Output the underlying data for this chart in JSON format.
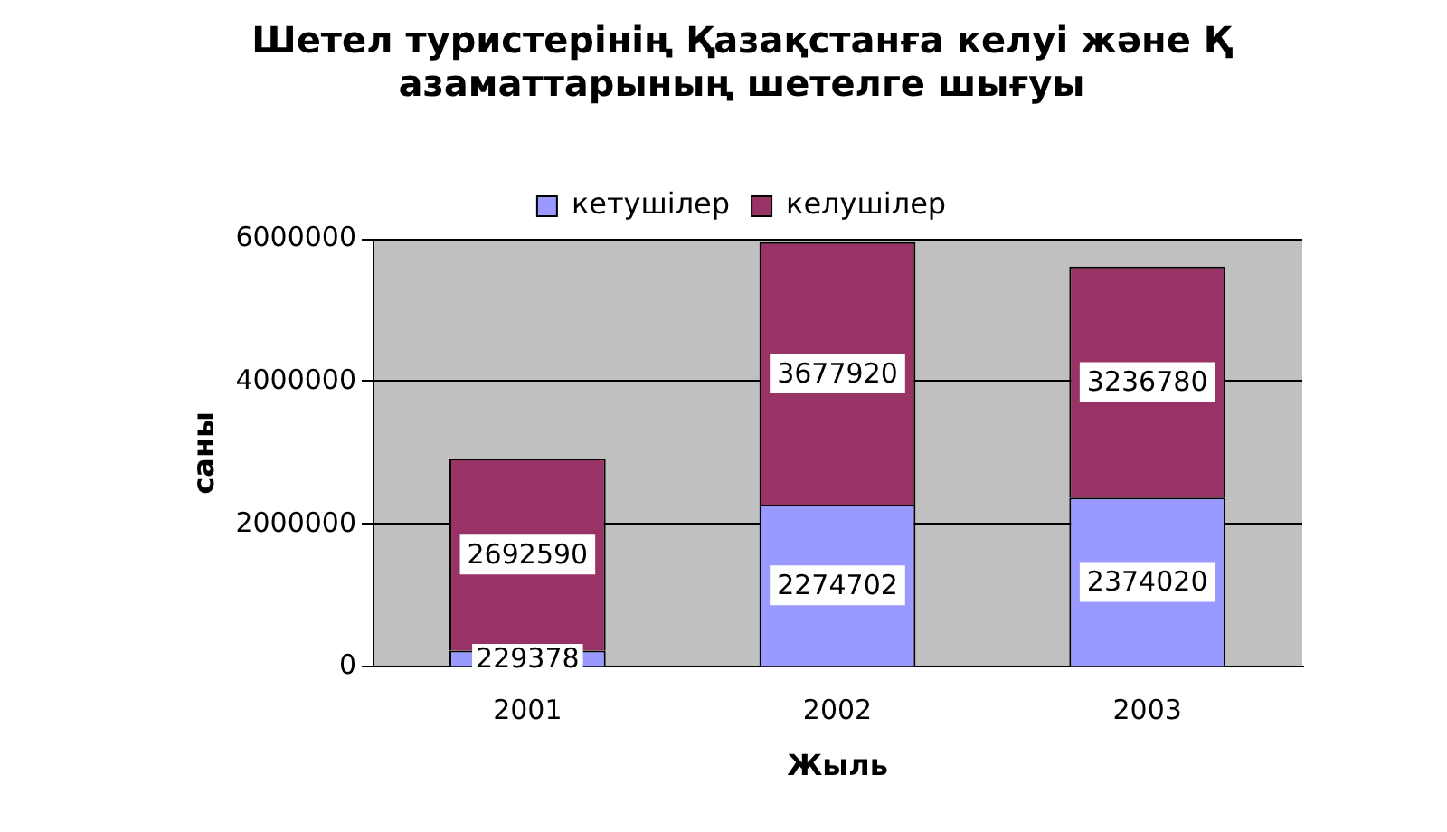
{
  "chart_data": {
    "type": "bar",
    "title": "Шетел туристерінің Қазақстанға келуі және Қ\nазаматтарының шетелге шығуы",
    "xlabel": "Жыль",
    "ylabel": "саны",
    "categories": [
      "2001",
      "2002",
      "2003"
    ],
    "series": [
      {
        "name": "кетушілер",
        "color": "#9999ff",
        "values": [
          229378,
          2274702,
          2374020
        ]
      },
      {
        "name": "келушілер",
        "color": "#993366",
        "values": [
          2692590,
          3677920,
          3236780
        ]
      }
    ],
    "stacked": true,
    "ylim": [
      0,
      6000000
    ],
    "yticks": [
      0,
      2000000,
      4000000,
      6000000
    ],
    "grid": "y",
    "legend": "top",
    "data_labels": true
  }
}
